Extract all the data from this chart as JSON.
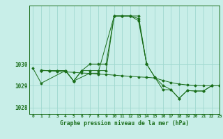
{
  "background_color": "#c8eee8",
  "grid_color": "#a0d8d0",
  "line_color": "#1a6e1a",
  "title": "Graphe pression niveau de la mer (hPa)",
  "xlim": [
    -0.5,
    23
  ],
  "ylim": [
    1027.7,
    1032.7
  ],
  "yticks": [
    1028,
    1029,
    1030
  ],
  "xticks": [
    0,
    1,
    2,
    3,
    4,
    5,
    6,
    7,
    8,
    9,
    10,
    11,
    12,
    13,
    14,
    15,
    16,
    17,
    18,
    19,
    20,
    21,
    22,
    23
  ],
  "s1_x": [
    0,
    1,
    4,
    5,
    7,
    8,
    10,
    11,
    12,
    13,
    14
  ],
  "s1_y": [
    1029.8,
    1029.12,
    1029.7,
    1029.22,
    1029.58,
    1029.58,
    1032.22,
    1032.22,
    1032.22,
    1032.1,
    1030.0
  ],
  "s2_x": [
    1,
    2,
    3,
    4,
    5,
    6,
    7,
    8,
    9,
    10,
    11,
    12,
    13,
    14,
    15,
    16,
    17,
    18,
    19,
    20,
    21,
    22,
    23
  ],
  "s2_y": [
    1029.72,
    1029.69,
    1029.67,
    1029.64,
    1029.62,
    1029.59,
    1029.57,
    1029.54,
    1029.52,
    1029.49,
    1029.46,
    1029.44,
    1029.41,
    1029.39,
    1029.36,
    1029.25,
    1029.15,
    1029.08,
    1029.04,
    1029.02,
    1029.0,
    1029.0,
    1029.0
  ],
  "s3_x": [
    1,
    2,
    3,
    4,
    5,
    6,
    7,
    8,
    9,
    10,
    11,
    12,
    13,
    14,
    15,
    16,
    17,
    18,
    19,
    20,
    21,
    22,
    23
  ],
  "s3_y": [
    1029.7,
    1029.7,
    1029.7,
    1029.7,
    1029.22,
    1029.7,
    1030.0,
    1030.0,
    1030.0,
    1032.22,
    1032.22,
    1032.22,
    1032.0,
    1030.0,
    1029.4,
    1028.82,
    1028.82,
    1028.42,
    1028.78,
    1028.76,
    1028.76,
    1029.0,
    1029.0
  ],
  "s4_x": [
    1,
    2,
    3,
    4,
    5,
    6,
    7,
    8,
    9,
    10,
    11,
    12,
    13,
    14,
    15,
    16,
    17,
    18,
    19,
    20,
    21,
    22,
    23
  ],
  "s4_y": [
    1029.7,
    1029.7,
    1029.7,
    1029.7,
    1029.22,
    1029.7,
    1029.7,
    1029.7,
    1029.7,
    1032.22,
    1032.22,
    1032.22,
    1032.22,
    1030.0,
    1029.4,
    1029.02,
    1028.82,
    1028.42,
    1028.78,
    1028.76,
    1028.76,
    1029.0,
    1029.0
  ]
}
